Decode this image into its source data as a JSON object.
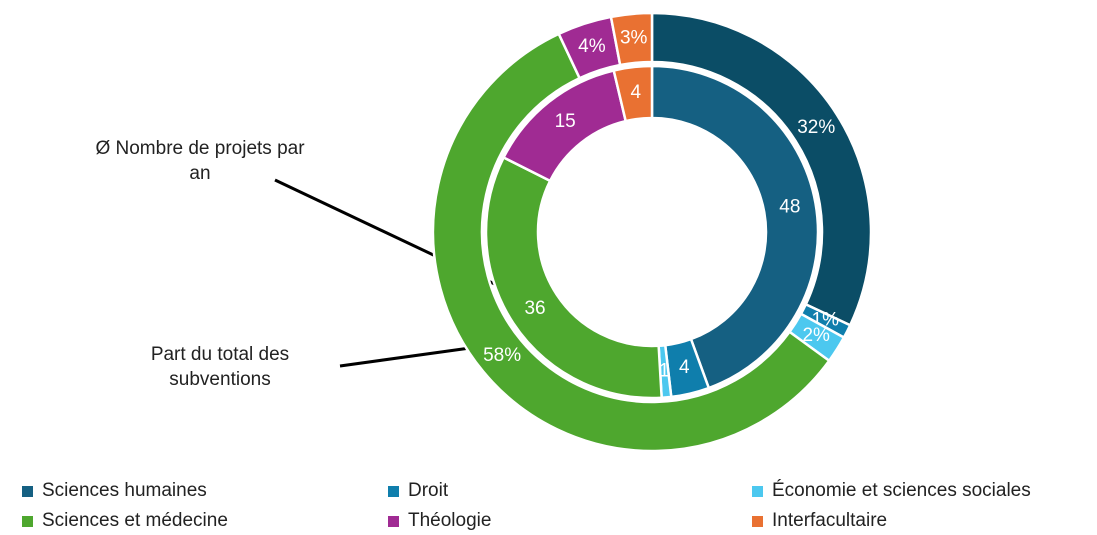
{
  "chart_data": {
    "type": "donut",
    "categories": [
      "Sciences humaines",
      "Droit",
      "Économie et sciences sociales",
      "Sciences et médecine",
      "Théologie",
      "Interfacultaire"
    ],
    "legend_colors": [
      "#156082",
      "#0f7eac",
      "#4cc8ef",
      "#4ea72e",
      "#a02b93",
      "#e97132"
    ],
    "series": [
      {
        "name": "Part du total des subventions",
        "ring": "outer",
        "values": [
          32,
          1,
          2,
          58,
          4,
          3
        ],
        "value_labels": [
          "32%",
          "1%",
          "2%",
          "58%",
          "4%",
          "3%"
        ],
        "colors": [
          "#0b4d66",
          "#0f7eac",
          "#4cc8ef",
          "#4ea72e",
          "#a02b93",
          "#e97132"
        ]
      },
      {
        "name": "Ø Nombre de projets par an",
        "ring": "inner",
        "values": [
          48,
          4,
          1,
          36,
          15,
          4
        ],
        "colors": [
          "#156082",
          "#0f7eac",
          "#4cc8ef",
          "#4ea72e",
          "#a02b93",
          "#e97132"
        ]
      }
    ]
  }
}
